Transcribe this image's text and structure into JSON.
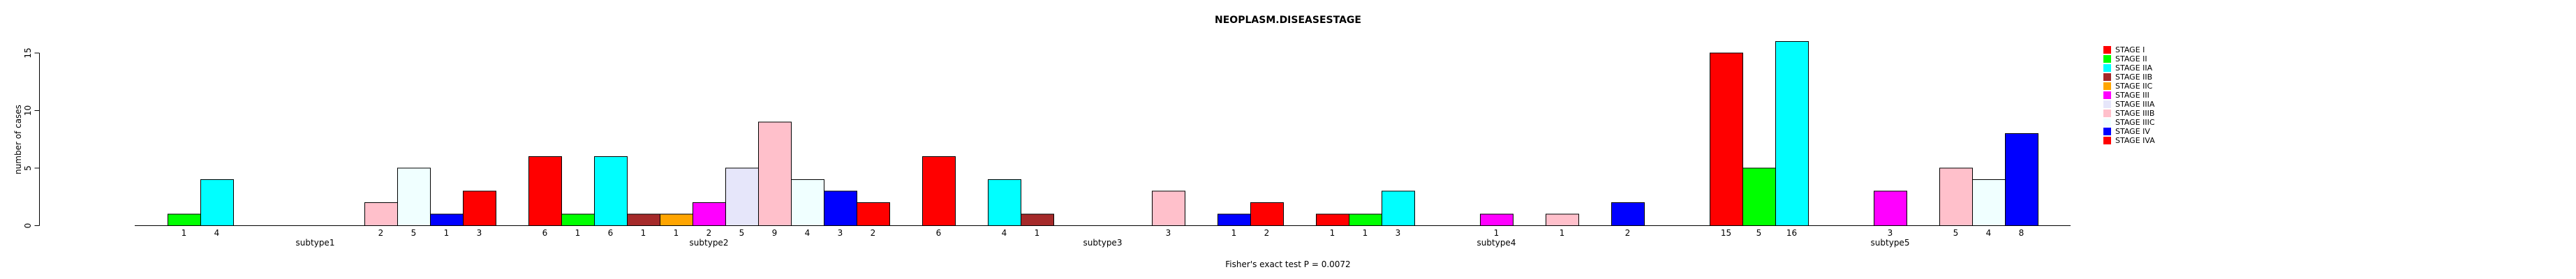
{
  "title": "NEOPLASM.DISEASESTAGE",
  "footer": "Fisher's exact test P = 0.0072",
  "chart_data": {
    "type": "bar",
    "title": "NEOPLASM.DISEASESTAGE",
    "xlabel": "",
    "ylabel": "number of cases",
    "ylim": [
      0,
      16.5
    ],
    "yticks": [
      0,
      5,
      10,
      15
    ],
    "grid": false,
    "legend_position": "right",
    "bar_value_labels": true,
    "annotation": "Fisher's exact test P = 0.0072",
    "categories": [
      "subtype1",
      "subtype2",
      "subtype3",
      "subtype4",
      "subtype5"
    ],
    "series": [
      {
        "name": "STAGE I",
        "color": "#FF0000",
        "values": [
          0,
          6,
          6,
          1,
          15
        ]
      },
      {
        "name": "STAGE II",
        "color": "#00FF00",
        "values": [
          1,
          1,
          0,
          1,
          5
        ]
      },
      {
        "name": "STAGE IIA",
        "color": "#00FFFF",
        "values": [
          4,
          6,
          4,
          3,
          16
        ]
      },
      {
        "name": "STAGE IIB",
        "color": "#A52A2A",
        "values": [
          0,
          1,
          1,
          0,
          0
        ]
      },
      {
        "name": "STAGE IIC",
        "color": "#FFA500",
        "values": [
          0,
          1,
          0,
          0,
          0
        ]
      },
      {
        "name": "STAGE III",
        "color": "#FF00FF",
        "values": [
          0,
          2,
          0,
          1,
          3
        ]
      },
      {
        "name": "STAGE IIIA",
        "color": "#E6E6FA",
        "values": [
          0,
          5,
          0,
          0,
          0
        ]
      },
      {
        "name": "STAGE IIIB",
        "color": "#FFC0CB",
        "values": [
          2,
          9,
          3,
          1,
          5
        ]
      },
      {
        "name": "STAGE IIIC",
        "color": "#F0FFFF",
        "values": [
          5,
          4,
          0,
          0,
          4
        ]
      },
      {
        "name": "STAGE IV",
        "color": "#0000FF",
        "values": [
          1,
          3,
          1,
          2,
          8
        ]
      },
      {
        "name": "STAGE IVA",
        "color": "#FF0000",
        "values": [
          3,
          2,
          2,
          0,
          0
        ]
      }
    ]
  }
}
